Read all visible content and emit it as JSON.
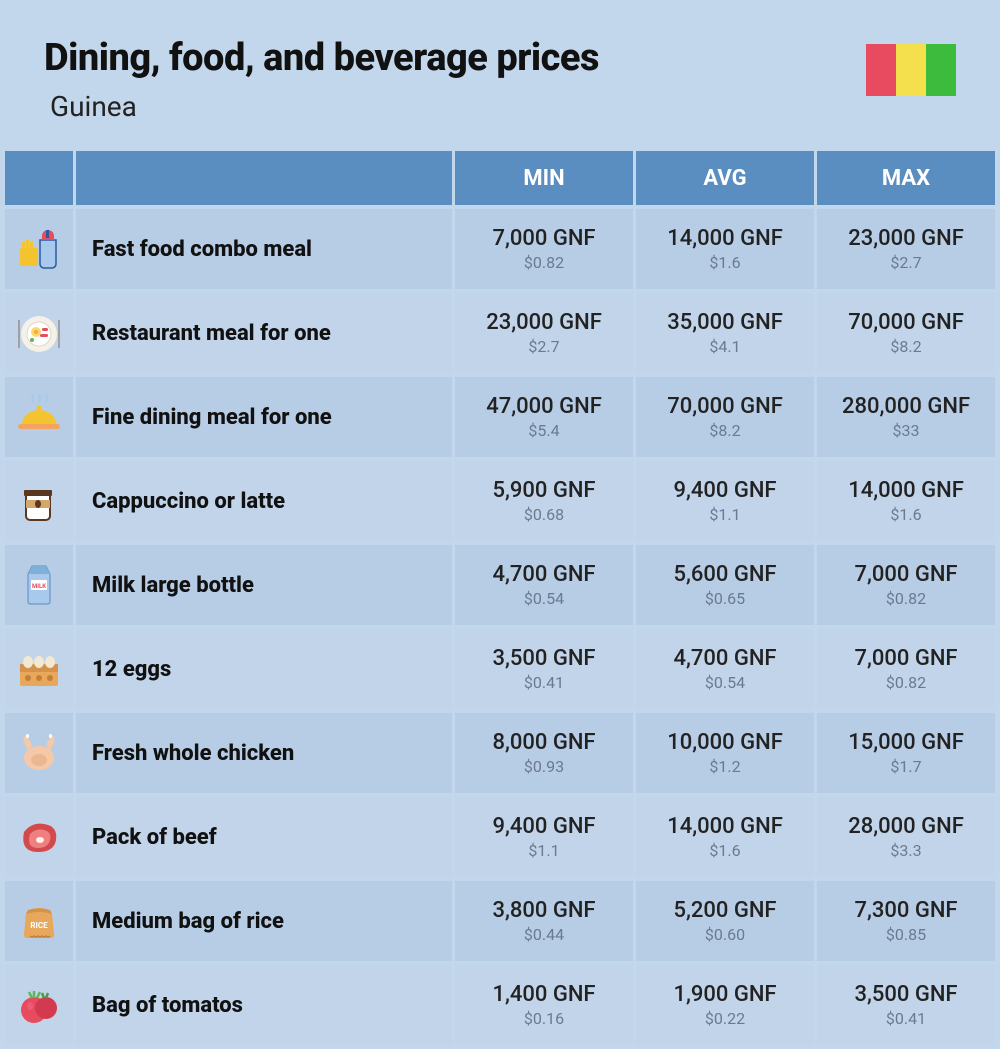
{
  "title": "Dining, food, and beverage prices",
  "country": "Guinea",
  "flag_colors": [
    "#e84a5f",
    "#f4e04d",
    "#3dbb3d"
  ],
  "header_bg": "#5a8dc0",
  "header_text": "#ffffff",
  "row_bg_a": "#b7cce5",
  "row_bg_b": "#c1d4ea",
  "page_bg": "#c3d7ec",
  "gnf_color": "#222222",
  "usd_color": "#6b7a8f",
  "columns": {
    "min": "MIN",
    "avg": "AVG",
    "max": "MAX"
  },
  "rows": [
    {
      "icon": "fastfood",
      "label": "Fast food combo meal",
      "min_gnf": "7,000 GNF",
      "min_usd": "$0.82",
      "avg_gnf": "14,000 GNF",
      "avg_usd": "$1.6",
      "max_gnf": "23,000 GNF",
      "max_usd": "$2.7"
    },
    {
      "icon": "plate",
      "label": "Restaurant meal for one",
      "min_gnf": "23,000 GNF",
      "min_usd": "$2.7",
      "avg_gnf": "35,000 GNF",
      "avg_usd": "$4.1",
      "max_gnf": "70,000 GNF",
      "max_usd": "$8.2"
    },
    {
      "icon": "cloche",
      "label": "Fine dining meal for one",
      "min_gnf": "47,000 GNF",
      "min_usd": "$5.4",
      "avg_gnf": "70,000 GNF",
      "avg_usd": "$8.2",
      "max_gnf": "280,000 GNF",
      "max_usd": "$33"
    },
    {
      "icon": "coffee",
      "label": "Cappuccino or latte",
      "min_gnf": "5,900 GNF",
      "min_usd": "$0.68",
      "avg_gnf": "9,400 GNF",
      "avg_usd": "$1.1",
      "max_gnf": "14,000 GNF",
      "max_usd": "$1.6"
    },
    {
      "icon": "milk",
      "label": "Milk large bottle",
      "min_gnf": "4,700 GNF",
      "min_usd": "$0.54",
      "avg_gnf": "5,600 GNF",
      "avg_usd": "$0.65",
      "max_gnf": "7,000 GNF",
      "max_usd": "$0.82"
    },
    {
      "icon": "eggs",
      "label": "12 eggs",
      "min_gnf": "3,500 GNF",
      "min_usd": "$0.41",
      "avg_gnf": "4,700 GNF",
      "avg_usd": "$0.54",
      "max_gnf": "7,000 GNF",
      "max_usd": "$0.82"
    },
    {
      "icon": "chicken",
      "label": "Fresh whole chicken",
      "min_gnf": "8,000 GNF",
      "min_usd": "$0.93",
      "avg_gnf": "10,000 GNF",
      "avg_usd": "$1.2",
      "max_gnf": "15,000 GNF",
      "max_usd": "$1.7"
    },
    {
      "icon": "beef",
      "label": "Pack of beef",
      "min_gnf": "9,400 GNF",
      "min_usd": "$1.1",
      "avg_gnf": "14,000 GNF",
      "avg_usd": "$1.6",
      "max_gnf": "28,000 GNF",
      "max_usd": "$3.3"
    },
    {
      "icon": "rice",
      "label": "Medium bag of rice",
      "min_gnf": "3,800 GNF",
      "min_usd": "$0.44",
      "avg_gnf": "5,200 GNF",
      "avg_usd": "$0.60",
      "max_gnf": "7,300 GNF",
      "max_usd": "$0.85"
    },
    {
      "icon": "tomato",
      "label": "Bag of tomatos",
      "min_gnf": "1,400 GNF",
      "min_usd": "$0.16",
      "avg_gnf": "1,900 GNF",
      "avg_usd": "$0.22",
      "max_gnf": "3,500 GNF",
      "max_usd": "$0.41"
    }
  ]
}
